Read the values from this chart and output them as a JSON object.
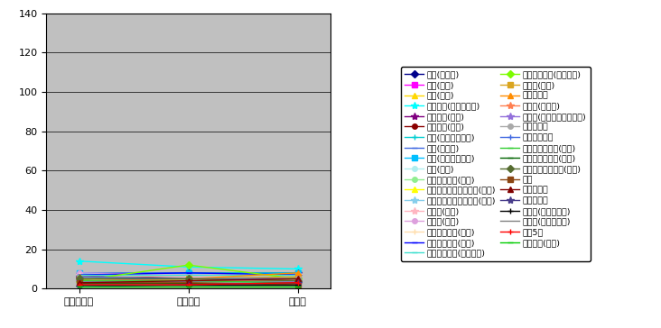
{
  "x_labels": [
    "アトランタ",
    "シドニー",
    "アテネ"
  ],
  "ylim": [
    0,
    140
  ],
  "yticks": [
    0,
    20,
    40,
    60,
    80,
    100,
    120,
    140
  ],
  "series": [
    {
      "label": "水泳(飛込み)",
      "color": "#00008B",
      "marker": "D",
      "markersize": 4,
      "data": [
        6,
        8,
        7
      ]
    },
    {
      "label": "水球(男子)",
      "color": "#FF00FF",
      "marker": "s",
      "markersize": 4,
      "data": [
        7,
        7,
        7
      ]
    },
    {
      "label": "水球(女子)",
      "color": "#FFD700",
      "marker": "^",
      "markersize": 4,
      "data": [
        5,
        4,
        5
      ]
    },
    {
      "label": "陸上競技(中・長距離)",
      "color": "#00FFFF",
      "marker": "*",
      "markersize": 6,
      "data": [
        14,
        11,
        10
      ]
    },
    {
      "label": "陸上競技(跛躍)",
      "color": "#800080",
      "marker": "*",
      "markersize": 6,
      "data": [
        7,
        8,
        8
      ]
    },
    {
      "label": "陸上競技(混成)",
      "color": "#8B0000",
      "marker": "o",
      "markersize": 4,
      "data": [
        6,
        6,
        5
      ]
    },
    {
      "label": "体操(体操競技女子)",
      "color": "#00CED1",
      "marker": "+",
      "markersize": 5,
      "data": [
        7,
        8,
        8
      ]
    },
    {
      "label": "体操(新体操)",
      "color": "#4169E1",
      "marker": "_",
      "markersize": 5,
      "data": [
        8,
        8,
        7
      ]
    },
    {
      "label": "体操(トランポリン)",
      "color": "#00BFFF",
      "marker": "s",
      "markersize": 4,
      "data": [
        8,
        8,
        8
      ]
    },
    {
      "label": "卓球(男子)",
      "color": "#AFEEEE",
      "marker": "o",
      "markersize": 4,
      "data": [
        6,
        5,
        5
      ]
    },
    {
      "label": "バレーボール(男子)",
      "color": "#90EE90",
      "marker": "o",
      "markersize": 4,
      "data": [
        5,
        3,
        4
      ]
    },
    {
      "label": "ウェイトリフティング(男子)",
      "color": "#FFFF00",
      "marker": "^",
      "markersize": 4,
      "data": [
        5,
        4,
        4
      ]
    },
    {
      "label": "ウェイトリフティング(女子)",
      "color": "#87CEEB",
      "marker": "*",
      "markersize": 6,
      "data": [
        7,
        6,
        6
      ]
    },
    {
      "label": "テニス(男子)",
      "color": "#FFB6C1",
      "marker": "*",
      "markersize": 6,
      "data": [
        7,
        6,
        7
      ]
    },
    {
      "label": "テニス(女子)",
      "color": "#DDA0DD",
      "marker": "o",
      "markersize": 4,
      "data": [
        8,
        7,
        7
      ]
    },
    {
      "label": "ハンドボール(男子)",
      "color": "#FFDEAD",
      "marker": "+",
      "markersize": 5,
      "data": [
        7,
        7,
        7
      ]
    },
    {
      "label": "ハンドボール(女子)",
      "color": "#0000FF",
      "marker": "_",
      "markersize": 5,
      "data": [
        7,
        8,
        7
      ]
    },
    {
      "label": "ライフル射撃(ライフル)",
      "color": "#40E0D0",
      "marker": "_",
      "markersize": 5,
      "data": [
        7,
        7,
        7
      ]
    },
    {
      "label": "ライフル射撃(ビストル)",
      "color": "#7CFC00",
      "marker": "D",
      "markersize": 4,
      "data": [
        4,
        12,
        5
      ]
    },
    {
      "label": "ボート(女子)",
      "color": "#DAA520",
      "marker": "s",
      "markersize": 4,
      "data": [
        5,
        5,
        6
      ]
    },
    {
      "label": "セーリング",
      "color": "#FF8C00",
      "marker": "^",
      "markersize": 4,
      "data": [
        6,
        5,
        8
      ]
    },
    {
      "label": "自転車(ロード)",
      "color": "#FF7F50",
      "marker": "*",
      "markersize": 6,
      "data": [
        5,
        4,
        4
      ]
    },
    {
      "label": "自転車(マウンテンバイク)",
      "color": "#9370DB",
      "marker": "*",
      "markersize": 6,
      "data": [
        4,
        4,
        4
      ]
    },
    {
      "label": "クレー射撃",
      "color": "#A9A9A9",
      "marker": "o",
      "markersize": 4,
      "data": [
        5,
        5,
        5
      ]
    },
    {
      "label": "フェンシング",
      "color": "#4169E1",
      "marker": "+",
      "markersize": 5,
      "data": [
        6,
        5,
        5
      ]
    },
    {
      "label": "トライアスロン(男子)",
      "color": "#32CD32",
      "marker": "_",
      "markersize": 5,
      "data": [
        4,
        4,
        3
      ]
    },
    {
      "label": "トライアスロン(女子)",
      "color": "#006400",
      "marker": "_",
      "markersize": 5,
      "data": [
        3,
        3,
        3
      ]
    },
    {
      "label": "バスケットボール(男子)",
      "color": "#556B2F",
      "marker": "D",
      "markersize": 4,
      "data": [
        5,
        5,
        4
      ]
    },
    {
      "label": "馬術",
      "color": "#8B4513",
      "marker": "s",
      "markersize": 4,
      "data": [
        3,
        3,
        2
      ]
    },
    {
      "label": "ボクシング",
      "color": "#800000",
      "marker": "^",
      "markersize": 4,
      "data": [
        3,
        4,
        5
      ]
    },
    {
      "label": "テコンドー",
      "color": "#483D8B",
      "marker": "*",
      "markersize": 6,
      "data": [
        1,
        2,
        3
      ]
    },
    {
      "label": "カヌー(スラローム)",
      "color": "#000000",
      "marker": "+",
      "markersize": 5,
      "data": [
        2,
        2,
        2
      ]
    },
    {
      "label": "カヌー(レーシング)",
      "color": "#808080",
      "marker": "None",
      "markersize": 4,
      "data": [
        1,
        1,
        1
      ]
    },
    {
      "label": "近代5種",
      "color": "#FF0000",
      "marker": "+",
      "markersize": 5,
      "data": [
        2,
        2,
        3
      ]
    },
    {
      "label": "ホッケー(男子)",
      "color": "#00CC00",
      "marker": "_",
      "markersize": 5,
      "data": [
        1,
        1,
        1
      ]
    }
  ]
}
